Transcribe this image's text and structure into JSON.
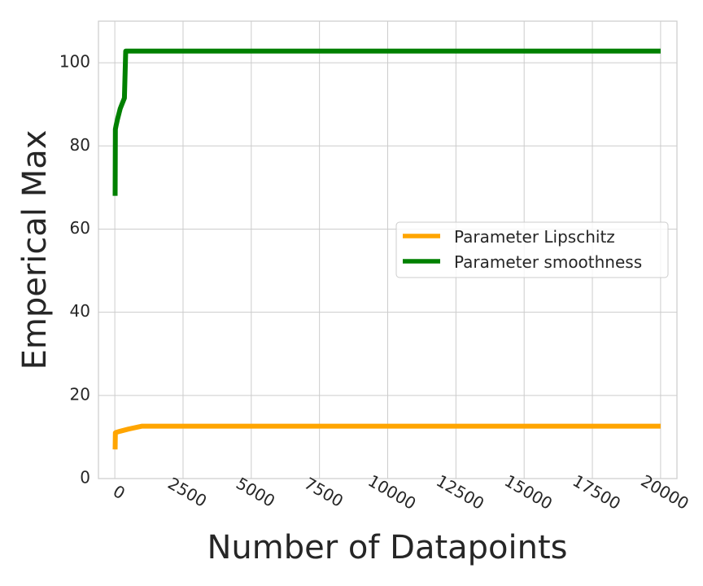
{
  "chart_data": {
    "type": "line",
    "xlabel": "Number of Datapoints",
    "ylabel": "Emperical Max",
    "xlim": [
      -600,
      20600
    ],
    "ylim": [
      0,
      110
    ],
    "x_ticks": [
      0,
      2500,
      5000,
      7500,
      10000,
      12500,
      15000,
      17500,
      20000
    ],
    "x_tick_labels": [
      "0",
      "2500",
      "5000",
      "7500",
      "10000",
      "12500",
      "15000",
      "17500",
      "20000"
    ],
    "y_ticks": [
      0,
      20,
      40,
      60,
      80,
      100
    ],
    "y_tick_labels": [
      "0",
      "20",
      "40",
      "60",
      "80",
      "100"
    ],
    "grid": true,
    "legend_position": "center-right",
    "series": [
      {
        "name": "Parameter Lipschitz",
        "color": "#ffa500",
        "x": [
          10,
          20,
          50,
          100,
          200,
          500,
          1000,
          2000,
          5000,
          10000,
          20000
        ],
        "y": [
          7,
          11,
          11.1,
          11.2,
          11.4,
          11.9,
          12.6,
          12.6,
          12.6,
          12.6,
          12.6
        ]
      },
      {
        "name": "Parameter smoothness",
        "color": "#008000",
        "x": [
          10,
          20,
          50,
          100,
          200,
          350,
          400,
          500,
          1000,
          2000,
          5000,
          10000,
          20000
        ],
        "y": [
          68,
          84,
          85,
          86.5,
          89,
          91.5,
          102.8,
          102.8,
          102.8,
          102.8,
          102.8,
          102.8,
          102.8
        ]
      }
    ]
  }
}
